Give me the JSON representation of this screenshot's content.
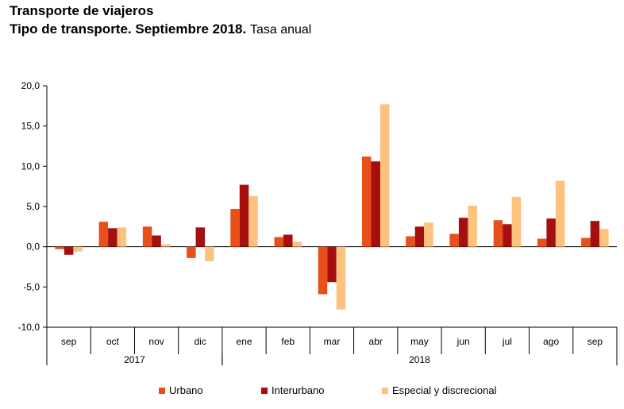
{
  "header": {
    "title": "Transporte de viajeros",
    "subtitle_strong": "Tipo de transporte. Septiembre 2018.",
    "subtitle_light": "Tasa anual"
  },
  "chart_data": {
    "type": "bar",
    "categories": [
      "sep",
      "oct",
      "nov",
      "dic",
      "ene",
      "feb",
      "mar",
      "abr",
      "may",
      "jun",
      "jul",
      "ago",
      "sep"
    ],
    "year_groups": [
      {
        "label": "2017",
        "start": 0,
        "end": 3
      },
      {
        "label": "2018",
        "start": 4,
        "end": 12
      }
    ],
    "series": [
      {
        "name": "Urbano",
        "color": "#e8501a",
        "values": [
          -0.3,
          3.1,
          2.5,
          -1.4,
          4.7,
          1.2,
          -5.9,
          11.2,
          1.3,
          1.6,
          3.3,
          1.0,
          1.1
        ]
      },
      {
        "name": "Interurbano",
        "color": "#a50f0f",
        "values": [
          -1.0,
          2.3,
          1.4,
          2.4,
          7.7,
          1.5,
          -4.4,
          10.6,
          2.5,
          3.6,
          2.8,
          3.5,
          3.2
        ]
      },
      {
        "name": "Especial y discrecional",
        "color": "#fcc27e",
        "values": [
          -0.6,
          2.4,
          0.3,
          -1.8,
          6.3,
          0.6,
          -7.8,
          17.7,
          3.0,
          5.1,
          6.2,
          8.2,
          2.2
        ]
      }
    ],
    "ylim": [
      -10,
      20
    ],
    "yticks": [
      "-10,0",
      "-5,0",
      "0,0",
      "5,0",
      "10,0",
      "15,0",
      "20,0"
    ],
    "legend_position": "bottom",
    "grid": false
  }
}
